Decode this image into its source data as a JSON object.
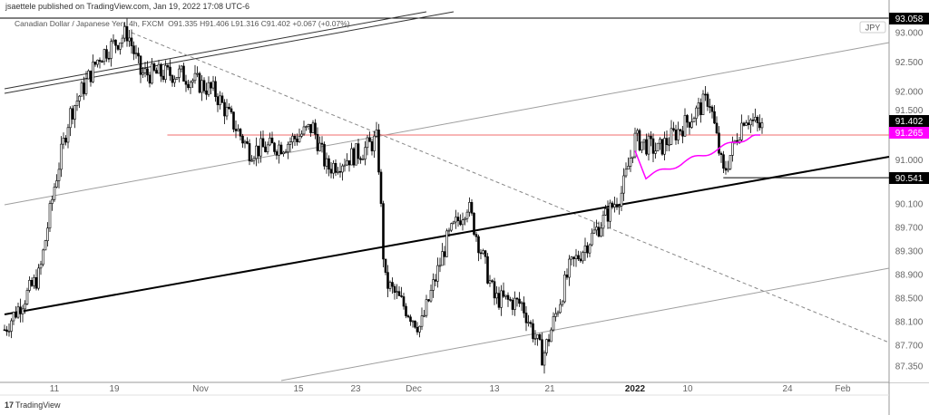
{
  "header": {
    "published": "jsaettele published on TradingView.com, Jan 19, 2022 17:08 UTC-6"
  },
  "legend": {
    "symbol": "Canadian Dollar / Japanese Yen, 4h, FXCM",
    "open": "O91.335",
    "high": "H91.406",
    "low": "L91.316",
    "close": "C91.402",
    "change": "+0.067 (+0.07%)"
  },
  "footer": {
    "logo_mark": "17",
    "logo_text": "TradingView"
  },
  "chart_data": {
    "type": "candlestick",
    "title": "Canadian Dollar / Japanese Yen, 4h, FXCM",
    "currency": "JPY",
    "ylim": [
      87.2,
      93.3
    ],
    "y_ticks": [
      "93.000",
      "92.500",
      "92.000",
      "91.500",
      "91.000",
      "90.100",
      "89.700",
      "89.300",
      "88.900",
      "88.500",
      "88.100",
      "87.700",
      "87.350"
    ],
    "x_ticks": [
      {
        "label": "11",
        "date": "2021-10-11"
      },
      {
        "label": "19",
        "date": "2021-10-19"
      },
      {
        "label": "Nov",
        "date": "2021-11-01"
      },
      {
        "label": "15",
        "date": "2021-11-15"
      },
      {
        "label": "23",
        "date": "2021-11-23"
      },
      {
        "label": "Dec",
        "date": "2021-12-01"
      },
      {
        "label": "13",
        "date": "2021-12-13"
      },
      {
        "label": "21",
        "date": "2021-12-21"
      },
      {
        "label": "2022",
        "date": "2022-01-03",
        "bold": true
      },
      {
        "label": "10",
        "date": "2022-01-10"
      },
      {
        "label": "24",
        "date": "2022-01-24"
      },
      {
        "label": "Feb",
        "date": "2022-02-01"
      }
    ],
    "price_path": [
      [
        "2021-10-04",
        87.9
      ],
      [
        "2021-10-09",
        88.9
      ],
      [
        "2021-10-11",
        90.4
      ],
      [
        "2021-10-13",
        91.6
      ],
      [
        "2021-10-15",
        92.1
      ],
      [
        "2021-10-17",
        92.6
      ],
      [
        "2021-10-21",
        93.0
      ],
      [
        "2021-10-23",
        92.3
      ],
      [
        "2021-10-29",
        92.3
      ],
      [
        "2021-11-03",
        92.0
      ],
      [
        "2021-11-08",
        91.0
      ],
      [
        "2021-11-13",
        91.1
      ],
      [
        "2021-11-17",
        91.4
      ],
      [
        "2021-11-19",
        90.7
      ],
      [
        "2021-11-24",
        91.0
      ],
      [
        "2021-11-26",
        91.2
      ],
      [
        "2021-11-27",
        88.8
      ],
      [
        "2021-12-02",
        88.0
      ],
      [
        "2021-12-06",
        89.5
      ],
      [
        "2021-12-09",
        90.1
      ],
      [
        "2021-12-13",
        88.5
      ],
      [
        "2021-12-17",
        88.4
      ],
      [
        "2021-12-20",
        87.5
      ],
      [
        "2021-12-24",
        89.0
      ],
      [
        "2021-12-29",
        89.8
      ],
      [
        "2022-01-01",
        90.3
      ],
      [
        "2022-01-03",
        91.2
      ],
      [
        "2022-01-06",
        91.0
      ],
      [
        "2022-01-10",
        91.5
      ],
      [
        "2022-01-13",
        91.9
      ],
      [
        "2022-01-15",
        90.6
      ],
      [
        "2022-01-18",
        91.6
      ],
      [
        "2022-01-20",
        91.4
      ]
    ],
    "price_labels": [
      {
        "value": "93.058",
        "bg": "#000000",
        "color": "#ffffff"
      },
      {
        "value": "91.402",
        "bg": "#000000",
        "color": "#ffffff"
      },
      {
        "value": "91.265",
        "bg": "#ff00ff",
        "color": "#ffffff"
      },
      {
        "value": "90.541",
        "bg": "#000000",
        "color": "#ffffff"
      }
    ],
    "levels": [
      {
        "price": 91.265,
        "color": "#f26d6d",
        "from": "2021-10-27"
      },
      {
        "price": 90.541,
        "color": "#000000",
        "from": "2022-01-15"
      }
    ],
    "colors": {
      "magenta_line": "#ff00ff",
      "trendline": "#000000",
      "channel": "#9e9e9e",
      "dashed": "#888888"
    }
  }
}
